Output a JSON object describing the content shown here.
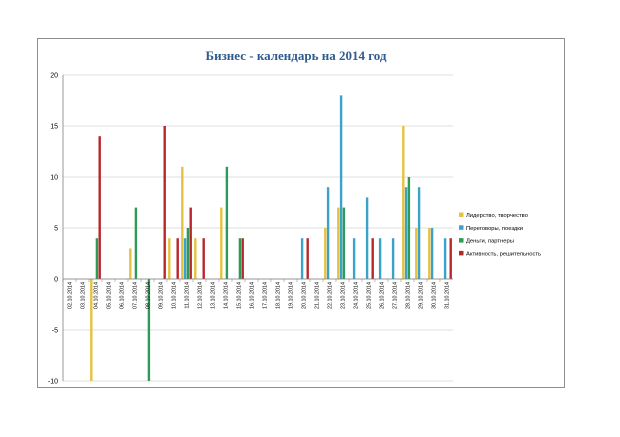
{
  "chart_data": {
    "type": "bar",
    "title": "Бизнес - календарь на 2014 год",
    "xlabel": "",
    "ylabel": "",
    "ylim": [
      -10,
      20
    ],
    "yticks": [
      -10,
      -5,
      0,
      5,
      10,
      15,
      20
    ],
    "grid": true,
    "legend_position": "right",
    "categories": [
      "02.10.2014",
      "03.10.2014",
      "04.10.2014",
      "05.10.2014",
      "06.10.2014",
      "07.10.2014",
      "08.10.2014",
      "09.10.2014",
      "10.10.2014",
      "11.10.2014",
      "12.10.2014",
      "13.10.2014",
      "14.10.2014",
      "15.10.2014",
      "16.10.2014",
      "17.10.2014",
      "18.10.2014",
      "19.10.2014",
      "20.10.2014",
      "21.10.2014",
      "22.10.2014",
      "23.10.2014",
      "24.10.2014",
      "25.10.2014",
      "26.10.2014",
      "27.10.2014",
      "28.10.2014",
      "29.10.2014",
      "30.10.2014",
      "31.10.2014"
    ],
    "series": [
      {
        "name": "Лидерство, творчество",
        "color": "#e6c13f",
        "values": [
          0,
          0,
          -10,
          0,
          0,
          3,
          0,
          0,
          4,
          11,
          4,
          0,
          7,
          0,
          0,
          0,
          0,
          0,
          0,
          0,
          5,
          7,
          0,
          0,
          0,
          0,
          15,
          5,
          5,
          0
        ]
      },
      {
        "name": "Переговоры, поездки",
        "color": "#3ba2c8",
        "values": [
          0,
          0,
          0,
          0,
          0,
          0,
          0,
          0,
          0,
          4,
          0,
          0,
          0,
          0,
          0,
          0,
          0,
          0,
          4,
          0,
          9,
          18,
          4,
          8,
          4,
          4,
          9,
          9,
          5,
          4
        ]
      },
      {
        "name": "Деньги, партнеры",
        "color": "#2e9a58",
        "values": [
          0,
          0,
          4,
          0,
          0,
          7,
          -10,
          0,
          0,
          5,
          0,
          0,
          11,
          4,
          0,
          0,
          0,
          0,
          0,
          0,
          0,
          7,
          0,
          0,
          0,
          0,
          10,
          0,
          0,
          0
        ]
      },
      {
        "name": "Активность, решительность",
        "color": "#b8262b",
        "values": [
          0,
          0,
          14,
          0,
          0,
          0,
          0,
          15,
          4,
          7,
          4,
          0,
          0,
          4,
          0,
          0,
          0,
          0,
          4,
          0,
          0,
          0,
          0,
          4,
          0,
          0,
          0,
          0,
          0,
          4
        ]
      }
    ]
  }
}
